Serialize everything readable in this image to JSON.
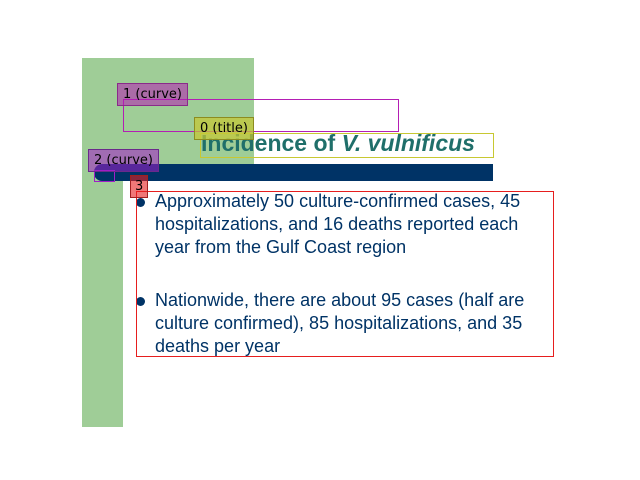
{
  "slide": {
    "title_prefix": "Incidence of ",
    "title_emphasis": "V. vulnificus",
    "bullets": [
      "Approximately 50 culture-confirmed cases, 45 hospitalizations, and 16 deaths reported each year from the Gulf Coast region",
      "Nationwide, there are about 95 cases (half are culture confirmed), 85 hospitalizations, and 35 deaths per year"
    ]
  },
  "annotations": [
    {
      "label": "0 (title)",
      "color": "#c8c832"
    },
    {
      "label": "1 (curve)",
      "color": "#b41eb4"
    },
    {
      "label": "2 (curve)",
      "color": "#a01ec8"
    },
    {
      "label": "3",
      "color": "#e61e1e"
    }
  ],
  "colors": {
    "green_bg": "#9fcd97",
    "navy": "#003366",
    "title_teal": "#1f6f6a"
  }
}
